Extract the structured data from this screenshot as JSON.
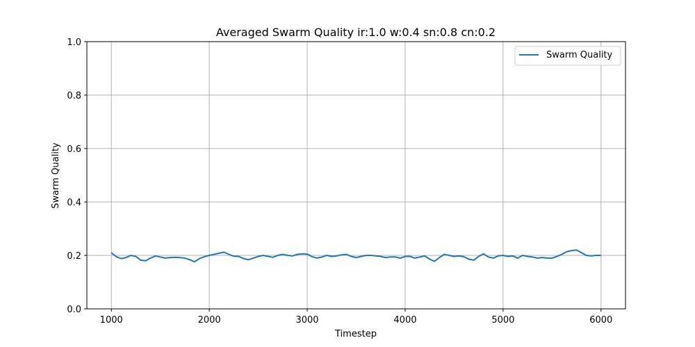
{
  "chart_data": {
    "type": "line",
    "title": "Averaged Swarm Quality ir:1.0 w:0.4 sn:0.8 cn:0.2",
    "xlabel": "Timestep",
    "ylabel": "Swarm Quality",
    "xlim": [
      750,
      6250
    ],
    "ylim": [
      0.0,
      1.0
    ],
    "xticks": [
      1000,
      2000,
      3000,
      4000,
      5000,
      6000
    ],
    "xtick_labels": [
      "1000",
      "2000",
      "3000",
      "4000",
      "5000",
      "6000"
    ],
    "yticks": [
      0.0,
      0.2,
      0.4,
      0.6,
      0.8,
      1.0
    ],
    "ytick_labels": [
      "0.0",
      "0.2",
      "0.4",
      "0.6",
      "0.8",
      "1.0"
    ],
    "grid": true,
    "legend_position": "top-right",
    "series": [
      {
        "name": "Swarm Quality",
        "color": "#1f77b4",
        "x": [
          1000,
          1050,
          1100,
          1150,
          1200,
          1250,
          1300,
          1350,
          1400,
          1450,
          1500,
          1550,
          1600,
          1650,
          1700,
          1750,
          1800,
          1850,
          1900,
          1950,
          2000,
          2050,
          2100,
          2150,
          2200,
          2250,
          2300,
          2350,
          2400,
          2450,
          2500,
          2550,
          2600,
          2650,
          2700,
          2750,
          2800,
          2850,
          2900,
          2950,
          3000,
          3050,
          3100,
          3150,
          3200,
          3250,
          3300,
          3350,
          3400,
          3450,
          3500,
          3550,
          3600,
          3650,
          3700,
          3750,
          3800,
          3850,
          3900,
          3950,
          4000,
          4050,
          4100,
          4150,
          4200,
          4250,
          4300,
          4350,
          4400,
          4450,
          4500,
          4550,
          4600,
          4650,
          4700,
          4750,
          4800,
          4850,
          4900,
          4950,
          5000,
          5050,
          5100,
          5150,
          5200,
          5250,
          5300,
          5350,
          5400,
          5450,
          5500,
          5550,
          5600,
          5650,
          5700,
          5750,
          5800,
          5850,
          5900,
          5950,
          6000
        ],
        "y": [
          0.21,
          0.195,
          0.188,
          0.192,
          0.2,
          0.196,
          0.182,
          0.18,
          0.19,
          0.198,
          0.194,
          0.19,
          0.192,
          0.193,
          0.192,
          0.19,
          0.184,
          0.176,
          0.188,
          0.195,
          0.2,
          0.204,
          0.208,
          0.212,
          0.204,
          0.197,
          0.196,
          0.188,
          0.184,
          0.19,
          0.196,
          0.2,
          0.196,
          0.193,
          0.2,
          0.204,
          0.2,
          0.198,
          0.204,
          0.206,
          0.205,
          0.195,
          0.19,
          0.194,
          0.2,
          0.196,
          0.198,
          0.202,
          0.204,
          0.196,
          0.192,
          0.196,
          0.2,
          0.2,
          0.198,
          0.196,
          0.192,
          0.194,
          0.194,
          0.19,
          0.196,
          0.196,
          0.19,
          0.194,
          0.198,
          0.186,
          0.178,
          0.192,
          0.204,
          0.2,
          0.196,
          0.198,
          0.195,
          0.186,
          0.182,
          0.196,
          0.206,
          0.194,
          0.19,
          0.198,
          0.2,
          0.196,
          0.198,
          0.19,
          0.2,
          0.196,
          0.194,
          0.19,
          0.192,
          0.19,
          0.19,
          0.196,
          0.204,
          0.214,
          0.218,
          0.22,
          0.21,
          0.2,
          0.198,
          0.2,
          0.2
        ]
      }
    ]
  }
}
